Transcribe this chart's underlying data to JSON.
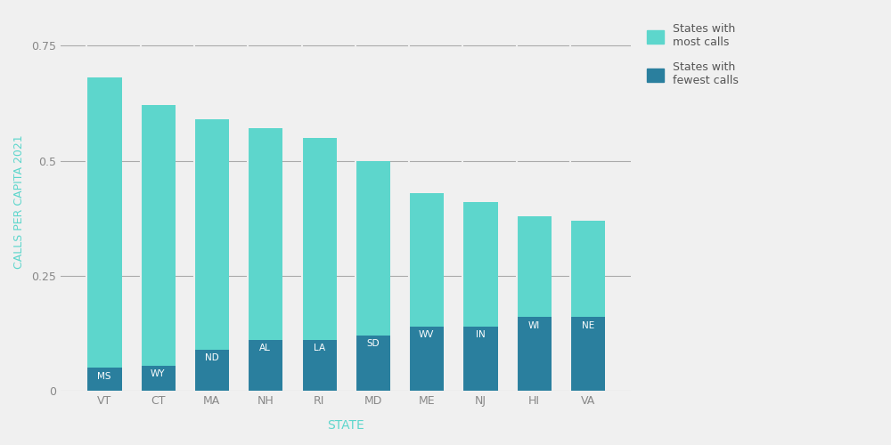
{
  "most_calls_states": [
    "VT",
    "CT",
    "MA",
    "NH",
    "RI",
    "MD",
    "ME",
    "NJ",
    "HI",
    "VA"
  ],
  "fewest_calls_states": [
    "MS",
    "WY",
    "ND",
    "AL",
    "LA",
    "SD",
    "WV",
    "IN",
    "WI",
    "NE"
  ],
  "most_calls_values": [
    0.68,
    0.62,
    0.59,
    0.57,
    0.55,
    0.5,
    0.43,
    0.41,
    0.38,
    0.37
  ],
  "fewest_calls_values": [
    0.05,
    0.055,
    0.09,
    0.11,
    0.11,
    0.12,
    0.14,
    0.14,
    0.16,
    0.16
  ],
  "most_calls_color": "#5dd6cc",
  "fewest_calls_color": "#2a7f9e",
  "background_color": "#f0f0f0",
  "ylabel": "CALLS PER CAPITA 2021",
  "xlabel": "STATE",
  "ylabel_color": "#5dd6cc",
  "xlabel_color": "#5dd6cc",
  "tick_color": "#888888",
  "grid_color": "#aaaaaa",
  "ylim": [
    0,
    0.82
  ],
  "yticks": [
    0,
    0.25,
    0.5,
    0.75
  ],
  "legend_most": "States with\nmost calls",
  "legend_fewest": "States with\nfewest calls",
  "bar_width": 0.65
}
